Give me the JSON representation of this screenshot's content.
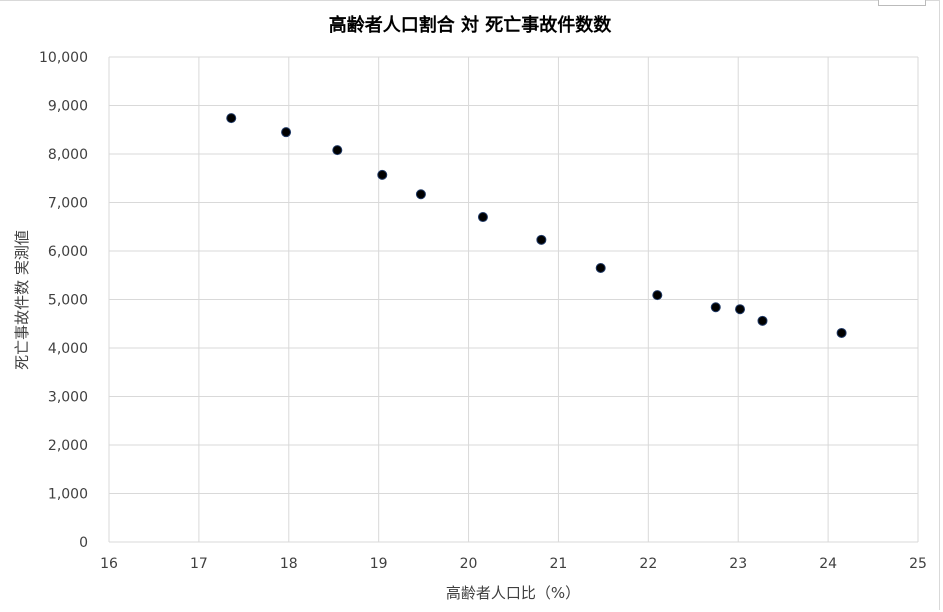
{
  "chart_data": {
    "type": "scatter",
    "title": "高齢者人口割合 対 死亡事故件数数",
    "xlabel": "高齢者人口比（%）",
    "ylabel": "死亡事故件数 実測値",
    "xlim": [
      16,
      25
    ],
    "ylim": [
      0,
      10000
    ],
    "xticks": [
      "16",
      "17",
      "18",
      "19",
      "20",
      "21",
      "22",
      "23",
      "24",
      "25"
    ],
    "yticks": [
      "0",
      "1,000",
      "2,000",
      "3,000",
      "4,000",
      "5,000",
      "6,000",
      "7,000",
      "8,000",
      "9,000",
      "10,000"
    ],
    "grid": true,
    "marker_color": "#000000",
    "points": [
      {
        "x": 17.36,
        "y": 8740
      },
      {
        "x": 17.97,
        "y": 8450
      },
      {
        "x": 18.54,
        "y": 8080
      },
      {
        "x": 19.04,
        "y": 7570
      },
      {
        "x": 19.47,
        "y": 7170
      },
      {
        "x": 20.16,
        "y": 6700
      },
      {
        "x": 20.81,
        "y": 6230
      },
      {
        "x": 21.47,
        "y": 5650
      },
      {
        "x": 22.1,
        "y": 5090
      },
      {
        "x": 22.75,
        "y": 4840
      },
      {
        "x": 23.02,
        "y": 4800
      },
      {
        "x": 23.27,
        "y": 4560
      },
      {
        "x": 24.15,
        "y": 4310
      }
    ]
  }
}
